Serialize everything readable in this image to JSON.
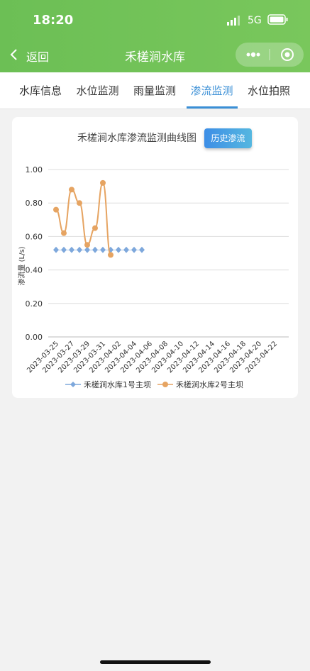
{
  "status": {
    "time": "18:20",
    "network": "5G"
  },
  "nav": {
    "back": "返回",
    "title": "禾槎涧水库"
  },
  "tabs": {
    "items": [
      "水库信息",
      "水位监测",
      "雨量监测",
      "渗流监测",
      "水位拍照"
    ],
    "active": 3
  },
  "button": "历史渗流",
  "chart_data": {
    "type": "line",
    "title": "禾槎涧水库渗流监测曲线图",
    "y_label": "渗流量 (L/s)",
    "categories": [
      "2023-03-25",
      null,
      "2023-03-27",
      null,
      "2023-03-29",
      null,
      "2023-03-31",
      null,
      "2023-04-02",
      null,
      "2023-04-04",
      null,
      "2023-04-06",
      null,
      "2023-04-08",
      null,
      "2023-04-10",
      null,
      "2023-04-12",
      null,
      "2023-04-14",
      null,
      "2023-04-16",
      null,
      "2023-04-18",
      null,
      "2023-04-20",
      null,
      "2023-04-22"
    ],
    "series": [
      {
        "name": "禾槎涧水库1号主坝",
        "color": "#7ea8dc",
        "marker": "diamond",
        "smooth": false,
        "values": [
          0.52,
          0.52,
          0.52,
          0.52,
          0.52,
          0.52,
          0.52,
          0.52,
          0.52,
          0.52,
          0.52,
          0.52,
          null,
          null,
          null,
          null,
          null,
          null,
          null,
          null,
          null,
          null,
          null,
          null,
          null,
          null,
          null,
          null,
          null
        ]
      },
      {
        "name": "禾槎涧水库2号主坝",
        "color": "#e6a462",
        "marker": "circle",
        "smooth": true,
        "values": [
          0.76,
          0.62,
          0.88,
          0.8,
          0.55,
          0.65,
          0.92,
          0.49,
          null,
          null,
          null,
          null,
          null,
          null,
          null,
          null,
          null,
          null,
          null,
          null,
          null,
          null,
          null,
          null,
          null,
          null,
          null,
          null,
          null
        ]
      }
    ],
    "ylim": [
      0,
      1
    ],
    "yticks": [
      {
        "value": 0,
        "label": "0.00"
      },
      {
        "value": 0.2,
        "label": "0.20"
      },
      {
        "value": 0.4,
        "label": "0.40"
      },
      {
        "value": 0.6,
        "label": "0.60"
      },
      {
        "value": 0.8,
        "label": "0.80"
      },
      {
        "value": 1,
        "label": "1.00"
      }
    ],
    "grid": true,
    "legend": "bottom"
  }
}
